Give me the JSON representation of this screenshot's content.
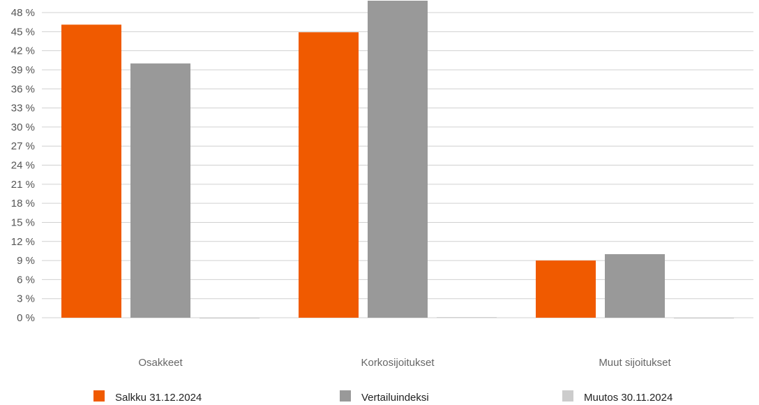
{
  "chart_data": {
    "type": "bar",
    "categories": [
      "Osakkeet",
      "Korkosijoitukset",
      "Muut sijoitukset"
    ],
    "series": [
      {
        "name": "Salkku 31.12.2024",
        "color": "#f05a00",
        "values": [
          46.1,
          44.9,
          9.0
        ]
      },
      {
        "name": "Vertailuindeksi",
        "color": "#999999",
        "values": [
          40.0,
          50.0,
          10.0
        ]
      },
      {
        "name": "Muutos 30.11.2024",
        "color": "#cccccc",
        "values": [
          0.0,
          0.1,
          -0.1
        ]
      }
    ],
    "ylim": [
      0,
      48
    ],
    "yticks": [
      0,
      3,
      6,
      9,
      12,
      15,
      18,
      21,
      24,
      27,
      30,
      33,
      36,
      39,
      42,
      45,
      48
    ],
    "ytick_labels": [
      "0 %",
      "3 %",
      "6 %",
      "9 %",
      "12 %",
      "15 %",
      "18 %",
      "21 %",
      "24 %",
      "27 %",
      "30 %",
      "33 %",
      "36 %",
      "39 %",
      "42 %",
      "45 %",
      "48 %"
    ],
    "grid": true,
    "legend_position": "bottom"
  }
}
